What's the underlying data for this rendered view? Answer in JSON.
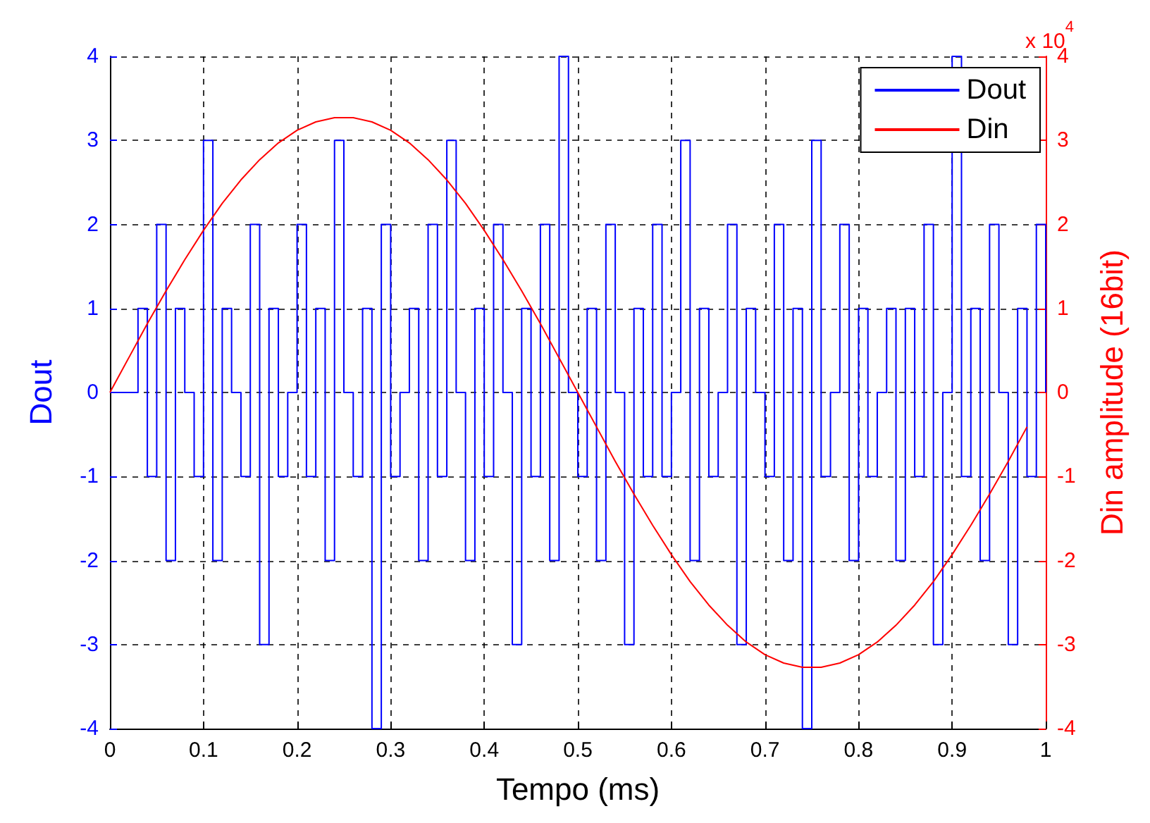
{
  "chart_data": {
    "type": "line",
    "xlabel": "Tempo (ms)",
    "ylabel": "Dout",
    "y2label": "Din amplitude (16bit)",
    "annotations": [
      "x 10$^{4}$"
    ],
    "xlim": [
      0,
      1
    ],
    "xticks": [
      0,
      0.1,
      0.2,
      0.3,
      0.4,
      0.5,
      0.6,
      0.7,
      0.8,
      0.9,
      1
    ],
    "ylim": [
      -4,
      4
    ],
    "yticks": [
      -4,
      -3,
      -2,
      -1,
      0,
      1,
      2,
      3,
      4
    ],
    "y2lim": [
      -4,
      4
    ],
    "y2ticks": [
      -4,
      -3,
      -2,
      -1,
      0,
      1,
      2,
      3,
      4
    ],
    "grid": true,
    "legend": "top right",
    "marker": "none",
    "series": [
      {
        "name": "Dout",
        "type": "step",
        "color": "#0000ff",
        "x": [
          0,
          0.01,
          0.02,
          0.03,
          0.04,
          0.05,
          0.06,
          0.07,
          0.08,
          0.09,
          0.1,
          0.11,
          0.12,
          0.13,
          0.14,
          0.15,
          0.16,
          0.17,
          0.18,
          0.19,
          0.2,
          0.21,
          0.22,
          0.23,
          0.24,
          0.25,
          0.26,
          0.27,
          0.28,
          0.29,
          0.3,
          0.31,
          0.32,
          0.33,
          0.34,
          0.35,
          0.36,
          0.37,
          0.38,
          0.39,
          0.4,
          0.41,
          0.42,
          0.43,
          0.44,
          0.45,
          0.46,
          0.47,
          0.48,
          0.49,
          0.5,
          0.51,
          0.52,
          0.53,
          0.54,
          0.55,
          0.56,
          0.57,
          0.58,
          0.59,
          0.6,
          0.61,
          0.62,
          0.63,
          0.64,
          0.65,
          0.66,
          0.67,
          0.68,
          0.69,
          0.7,
          0.71,
          0.72,
          0.73,
          0.74,
          0.75,
          0.76,
          0.77,
          0.78,
          0.79,
          0.8,
          0.81,
          0.82,
          0.83,
          0.84,
          0.85,
          0.86,
          0.87,
          0.88,
          0.89,
          0.9,
          0.91,
          0.92,
          0.93,
          0.94,
          0.95,
          0.96,
          0.97,
          0.98,
          0.99,
          1
        ],
        "values": [
          0,
          0,
          0,
          1,
          -1,
          2,
          -2,
          1,
          0,
          -1,
          3,
          -2,
          1,
          0,
          -1,
          2,
          -3,
          1,
          -1,
          0,
          2,
          -1,
          1,
          -2,
          3,
          0,
          -1,
          1,
          -4,
          2,
          -1,
          0,
          1,
          -2,
          2,
          -1,
          3,
          0,
          -2,
          1,
          -1,
          2,
          0,
          -3,
          1,
          -1,
          2,
          -2,
          4,
          0,
          -1,
          1,
          -2,
          2,
          0,
          -3,
          1,
          -1,
          2,
          -1,
          0,
          3,
          -2,
          1,
          -1,
          0,
          2,
          -3,
          1,
          0,
          -1,
          2,
          -2,
          1,
          -4,
          3,
          -1,
          0,
          2,
          -2,
          1,
          -1,
          0,
          1,
          -2,
          1,
          -1,
          2,
          -3,
          0,
          4,
          -1,
          1,
          -2,
          2,
          0,
          -3,
          1,
          -1,
          2,
          0
        ]
      },
      {
        "name": "Din",
        "axis": "y2",
        "color": "#ff0000",
        "x": [
          0,
          0.02,
          0.04,
          0.06,
          0.08,
          0.1,
          0.12,
          0.14,
          0.16,
          0.18,
          0.2,
          0.22,
          0.24,
          0.26,
          0.28,
          0.3,
          0.32,
          0.34,
          0.36,
          0.38,
          0.4,
          0.42,
          0.44,
          0.46,
          0.48,
          0.5,
          0.52,
          0.54,
          0.56,
          0.58,
          0.6,
          0.62,
          0.64,
          0.66,
          0.68,
          0.7,
          0.72,
          0.74,
          0.76,
          0.78,
          0.8,
          0.82,
          0.84,
          0.86,
          0.88,
          0.9,
          0.92,
          0.94,
          0.96,
          0.98
        ],
        "values": [
          0,
          0.41,
          0.82,
          1.21,
          1.58,
          1.93,
          2.25,
          2.53,
          2.77,
          2.97,
          3.12,
          3.22,
          3.27,
          3.27,
          3.22,
          3.12,
          2.97,
          2.77,
          2.53,
          2.25,
          1.93,
          1.58,
          1.21,
          0.82,
          0.41,
          0,
          -0.41,
          -0.82,
          -1.21,
          -1.58,
          -1.93,
          -2.25,
          -2.53,
          -2.77,
          -2.97,
          -3.12,
          -3.22,
          -3.27,
          -3.27,
          -3.22,
          -3.12,
          -2.97,
          -2.77,
          -2.53,
          -2.25,
          -1.93,
          -1.58,
          -1.21,
          -0.82,
          -0.41
        ]
      }
    ]
  }
}
